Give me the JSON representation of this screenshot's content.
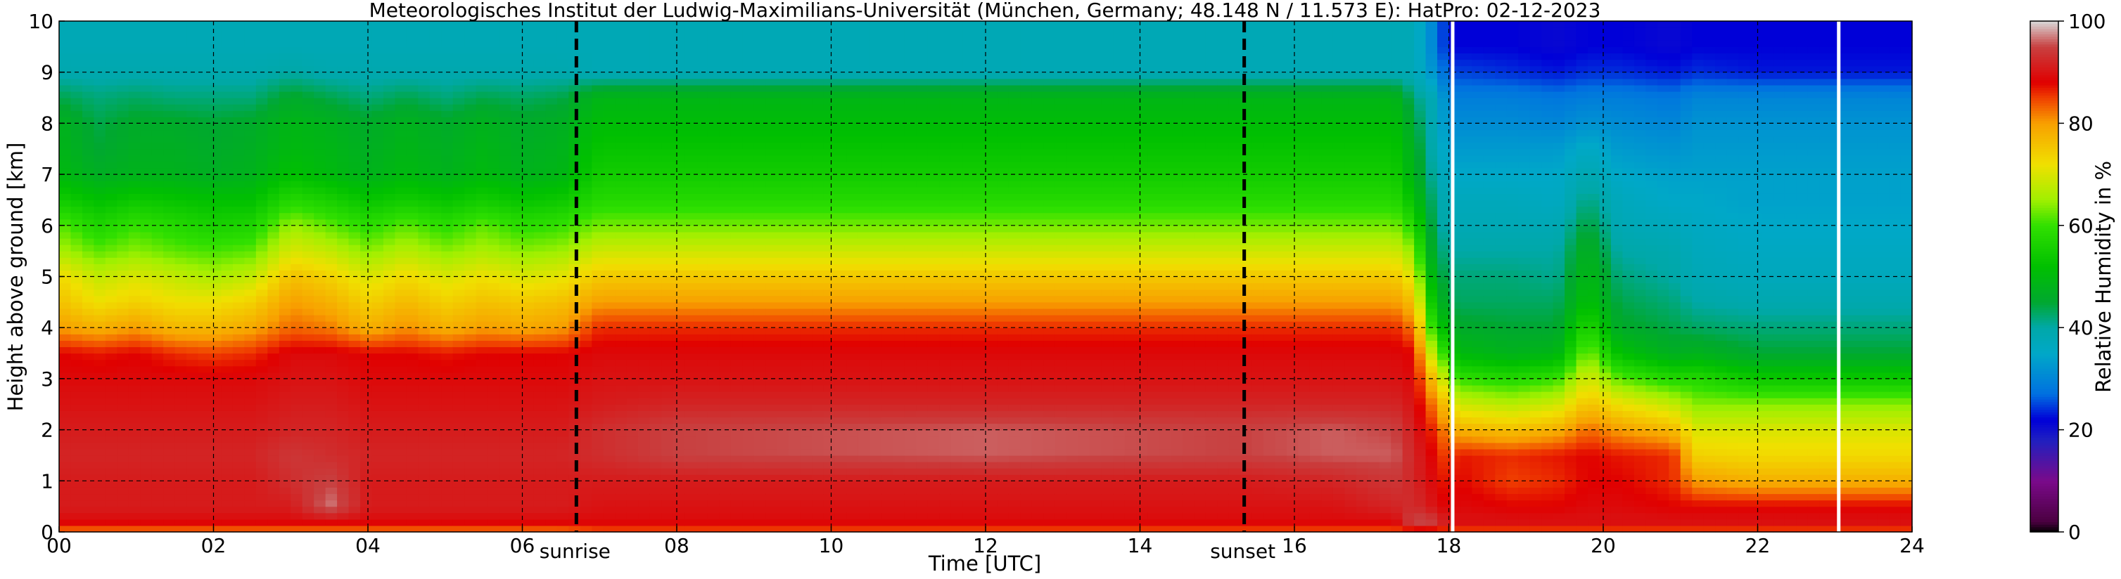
{
  "chart_data": {
    "type": "heatmap",
    "title": "Meteorologisches Institut der Ludwig-Maximilians-Universität (München, Germany; 48.148 N / 11.573 E):    HatPro: 02-12-2023",
    "xlabel": "Time [UTC]",
    "ylabel": "Height above ground [km]",
    "xlim": [
      0,
      24
    ],
    "ylim": [
      0,
      10
    ],
    "x_ticks": [
      0,
      2,
      4,
      6,
      8,
      10,
      12,
      14,
      16,
      18,
      20,
      22,
      24
    ],
    "x_tick_labels": [
      "00",
      "02",
      "04",
      "06",
      "08",
      "10",
      "12",
      "14",
      "16",
      "18",
      "20",
      "22",
      "24"
    ],
    "y_ticks": [
      0,
      1,
      2,
      3,
      4,
      5,
      6,
      7,
      8,
      9,
      10
    ],
    "y_tick_labels": [
      "0",
      "1",
      "2",
      "3",
      "4",
      "5",
      "6",
      "7",
      "8",
      "9",
      "10"
    ],
    "grid": true,
    "colorbar": {
      "label": "Relative Humidity in %",
      "range": [
        0,
        100
      ],
      "ticks": [
        0,
        20,
        40,
        60,
        80,
        100
      ],
      "tick_labels": [
        "0",
        "20",
        "40",
        "60",
        "80",
        "100"
      ],
      "stops": [
        {
          "v": 0,
          "color": "#000000"
        },
        {
          "v": 2,
          "color": "#4a0040"
        },
        {
          "v": 10,
          "color": "#7a0a8a"
        },
        {
          "v": 18,
          "color": "#2020c0"
        },
        {
          "v": 22,
          "color": "#0000d8"
        },
        {
          "v": 27,
          "color": "#0070e0"
        },
        {
          "v": 35,
          "color": "#00a8c8"
        },
        {
          "v": 40,
          "color": "#00a8a8"
        },
        {
          "v": 45,
          "color": "#00a830"
        },
        {
          "v": 52,
          "color": "#00c000"
        },
        {
          "v": 60,
          "color": "#30e000"
        },
        {
          "v": 65,
          "color": "#a0f000"
        },
        {
          "v": 72,
          "color": "#f0e000"
        },
        {
          "v": 80,
          "color": "#f8a000"
        },
        {
          "v": 85,
          "color": "#f04000"
        },
        {
          "v": 88,
          "color": "#e00000"
        },
        {
          "v": 95,
          "color": "#c84040"
        },
        {
          "v": 100,
          "color": "#d8d8d8"
        }
      ]
    },
    "annotations": [
      {
        "label": "sunrise",
        "x": 6.7
      },
      {
        "label": "sunset",
        "x": 15.35
      }
    ],
    "data_gaps_hours": [
      18.05,
      23.05
    ],
    "profile_anchors_km": [
      0,
      0.2,
      0.5,
      1,
      1.5,
      2,
      2.5,
      3,
      3.5,
      4,
      4.5,
      5,
      5.5,
      6,
      6.5,
      7,
      7.5,
      8,
      8.5,
      9,
      9.5,
      10
    ],
    "profiles": [
      {
        "t": 0.0,
        "rh": [
          82,
          89,
          91,
          91,
          92,
          91,
          90,
          89,
          88,
          80,
          76,
          73,
          66,
          62,
          55,
          50,
          49,
          48,
          44,
          39,
          38,
          38
        ]
      },
      {
        "t": 0.5,
        "rh": [
          82,
          89,
          91,
          91,
          92,
          91,
          90,
          89,
          87,
          78,
          72,
          68,
          62,
          57,
          52,
          47,
          45,
          44,
          42,
          39,
          38,
          38
        ]
      },
      {
        "t": 1.0,
        "rh": [
          82,
          89,
          91,
          91,
          92,
          91,
          90,
          89,
          88,
          80,
          74,
          70,
          64,
          60,
          54,
          48,
          47,
          46,
          43,
          39,
          38,
          38
        ]
      },
      {
        "t": 1.5,
        "rh": [
          82,
          89,
          91,
          91,
          92,
          91,
          90,
          89,
          86,
          77,
          72,
          68,
          62,
          58,
          53,
          48,
          47,
          46,
          42,
          39,
          38,
          38
        ]
      },
      {
        "t": 2.0,
        "rh": [
          82,
          89,
          91,
          91,
          92,
          91,
          90,
          89,
          85,
          77,
          72,
          66,
          61,
          56,
          52,
          47,
          46,
          45,
          42,
          39,
          38,
          38
        ]
      },
      {
        "t": 2.5,
        "rh": [
          82,
          89,
          91,
          91,
          92,
          91,
          90,
          89,
          86,
          79,
          74,
          68,
          62,
          57,
          52,
          48,
          47,
          46,
          42,
          39,
          38,
          38
        ]
      },
      {
        "t": 3.0,
        "rh": [
          82,
          89,
          91,
          93,
          94,
          92,
          91,
          90,
          89,
          83,
          80,
          76,
          70,
          65,
          58,
          52,
          50,
          49,
          46,
          40,
          38,
          38
        ]
      },
      {
        "t": 3.5,
        "rh": [
          82,
          89,
          97,
          95,
          93,
          92,
          91,
          90,
          89,
          82,
          78,
          74,
          68,
          62,
          56,
          50,
          49,
          48,
          44,
          39,
          38,
          38
        ]
      },
      {
        "t": 4.0,
        "rh": [
          82,
          89,
          91,
          91,
          92,
          91,
          90,
          89,
          88,
          78,
          74,
          70,
          64,
          59,
          53,
          48,
          47,
          46,
          42,
          39,
          38,
          38
        ]
      },
      {
        "t": 4.5,
        "rh": [
          82,
          89,
          91,
          91,
          92,
          91,
          90,
          89,
          88,
          81,
          77,
          73,
          67,
          62,
          55,
          50,
          49,
          48,
          44,
          39,
          38,
          38
        ]
      },
      {
        "t": 5.0,
        "rh": [
          82,
          89,
          91,
          91,
          92,
          91,
          90,
          89,
          87,
          78,
          74,
          70,
          64,
          59,
          53,
          48,
          47,
          46,
          42,
          39,
          38,
          38
        ]
      },
      {
        "t": 5.5,
        "rh": [
          82,
          89,
          91,
          91,
          92,
          91,
          90,
          89,
          88,
          80,
          76,
          72,
          66,
          62,
          55,
          50,
          49,
          48,
          44,
          39,
          38,
          38
        ]
      },
      {
        "t": 6.0,
        "rh": [
          82,
          89,
          91,
          91,
          92,
          91,
          90,
          89,
          88,
          79,
          75,
          70,
          64,
          59,
          53,
          48,
          47,
          46,
          43,
          39,
          38,
          38
        ]
      },
      {
        "t": 6.5,
        "rh": [
          82,
          89,
          91,
          91,
          92,
          91,
          90,
          89,
          88,
          80,
          76,
          71,
          65,
          60,
          54,
          49,
          48,
          47,
          44,
          39,
          38,
          38
        ]
      },
      {
        "t": 7.0,
        "rh": [
          84,
          89,
          90,
          91,
          93,
          93,
          91,
          90,
          89,
          86,
          80,
          75,
          69,
          63,
          58,
          55,
          53,
          51,
          49,
          38,
          38,
          38
        ]
      },
      {
        "t": 8.0,
        "rh": [
          84,
          89,
          90,
          91,
          95,
          95,
          92,
          90,
          89,
          86,
          80,
          75,
          69,
          63,
          58,
          55,
          53,
          51,
          49,
          38,
          38,
          38
        ]
      },
      {
        "t": 12.0,
        "rh": [
          84,
          89,
          90,
          91,
          96,
          96,
          92,
          90,
          89,
          86,
          80,
          75,
          69,
          63,
          58,
          55,
          53,
          51,
          49,
          38,
          38,
          38
        ]
      },
      {
        "t": 15.3,
        "rh": [
          84,
          89,
          90,
          91,
          95,
          95,
          92,
          90,
          89,
          86,
          80,
          75,
          69,
          63,
          58,
          55,
          53,
          51,
          49,
          38,
          38,
          38
        ]
      },
      {
        "t": 16.5,
        "rh": [
          84,
          89,
          90,
          92,
          96,
          96,
          92,
          90,
          89,
          86,
          80,
          75,
          69,
          63,
          58,
          55,
          53,
          51,
          49,
          38,
          38,
          38
        ]
      },
      {
        "t": 17.3,
        "rh": [
          84,
          89,
          92,
          94,
          96,
          95,
          92,
          90,
          89,
          86,
          80,
          75,
          69,
          63,
          58,
          55,
          53,
          51,
          49,
          38,
          38,
          38
        ]
      },
      {
        "t": 17.55,
        "rh": [
          84,
          96,
          93,
          92,
          92,
          91,
          90,
          89,
          88,
          82,
          76,
          70,
          64,
          58,
          52,
          48,
          47,
          45,
          42,
          38,
          38,
          38
        ]
      },
      {
        "t": 17.8,
        "rh": [
          84,
          95,
          90,
          89,
          88,
          86,
          82,
          76,
          66,
          58,
          52,
          48,
          45,
          43,
          42,
          40,
          39,
          38,
          38,
          32,
          30,
          30
        ]
      },
      {
        "t": 18.0,
        "rh": [
          84,
          90,
          88,
          86,
          84,
          80,
          74,
          64,
          56,
          48,
          44,
          42,
          40,
          38,
          37,
          35,
          33,
          31,
          29,
          25,
          22,
          22
        ]
      },
      {
        "t": 18.1,
        "rh": [
          84,
          90,
          89,
          88,
          87,
          78,
          69,
          60,
          50,
          46,
          43,
          42,
          40,
          38,
          37,
          35,
          33,
          31,
          29,
          25,
          22,
          22
        ]
      },
      {
        "t": 18.8,
        "rh": [
          84,
          90,
          88,
          85,
          86,
          76,
          67,
          58,
          48,
          45,
          43,
          42,
          40,
          38,
          37,
          35,
          33,
          31,
          29,
          24,
          22,
          22
        ]
      },
      {
        "t": 19.4,
        "rh": [
          84,
          90,
          88,
          86,
          87,
          78,
          69,
          60,
          49,
          45,
          43,
          41,
          40,
          38,
          36,
          35,
          33,
          30,
          28,
          23,
          21,
          21
        ]
      },
      {
        "t": 19.8,
        "rh": [
          84,
          90,
          89,
          88,
          88,
          83,
          76,
          70,
          64,
          58,
          52,
          50,
          48,
          45,
          42,
          39,
          36,
          32,
          29,
          24,
          22,
          22
        ]
      },
      {
        "t": 20.2,
        "rh": [
          84,
          90,
          89,
          88,
          87,
          80,
          72,
          62,
          52,
          46,
          44,
          42,
          40,
          38,
          37,
          35,
          33,
          31,
          29,
          24,
          22,
          22
        ]
      },
      {
        "t": 20.9,
        "rh": [
          84,
          90,
          88,
          86,
          86,
          77,
          68,
          58,
          47,
          44,
          42,
          40,
          39,
          37,
          35,
          34,
          32,
          30,
          28,
          23,
          21,
          21
        ]
      },
      {
        "t": 21.2,
        "rh": [
          84,
          90,
          88,
          80,
          74,
          70,
          64,
          58,
          48,
          43,
          40,
          38,
          37,
          36,
          35,
          34,
          33,
          32,
          30,
          24,
          22,
          22
        ]
      },
      {
        "t": 22.0,
        "rh": [
          84,
          90,
          88,
          78,
          73,
          70,
          64,
          54,
          45,
          42,
          39,
          37,
          36,
          35,
          34,
          34,
          33,
          32,
          30,
          23,
          22,
          22
        ]
      },
      {
        "t": 24.0,
        "rh": [
          84,
          90,
          88,
          78,
          73,
          70,
          64,
          54,
          45,
          42,
          39,
          37,
          36,
          35,
          34,
          34,
          33,
          32,
          30,
          23,
          22,
          22
        ]
      }
    ]
  }
}
